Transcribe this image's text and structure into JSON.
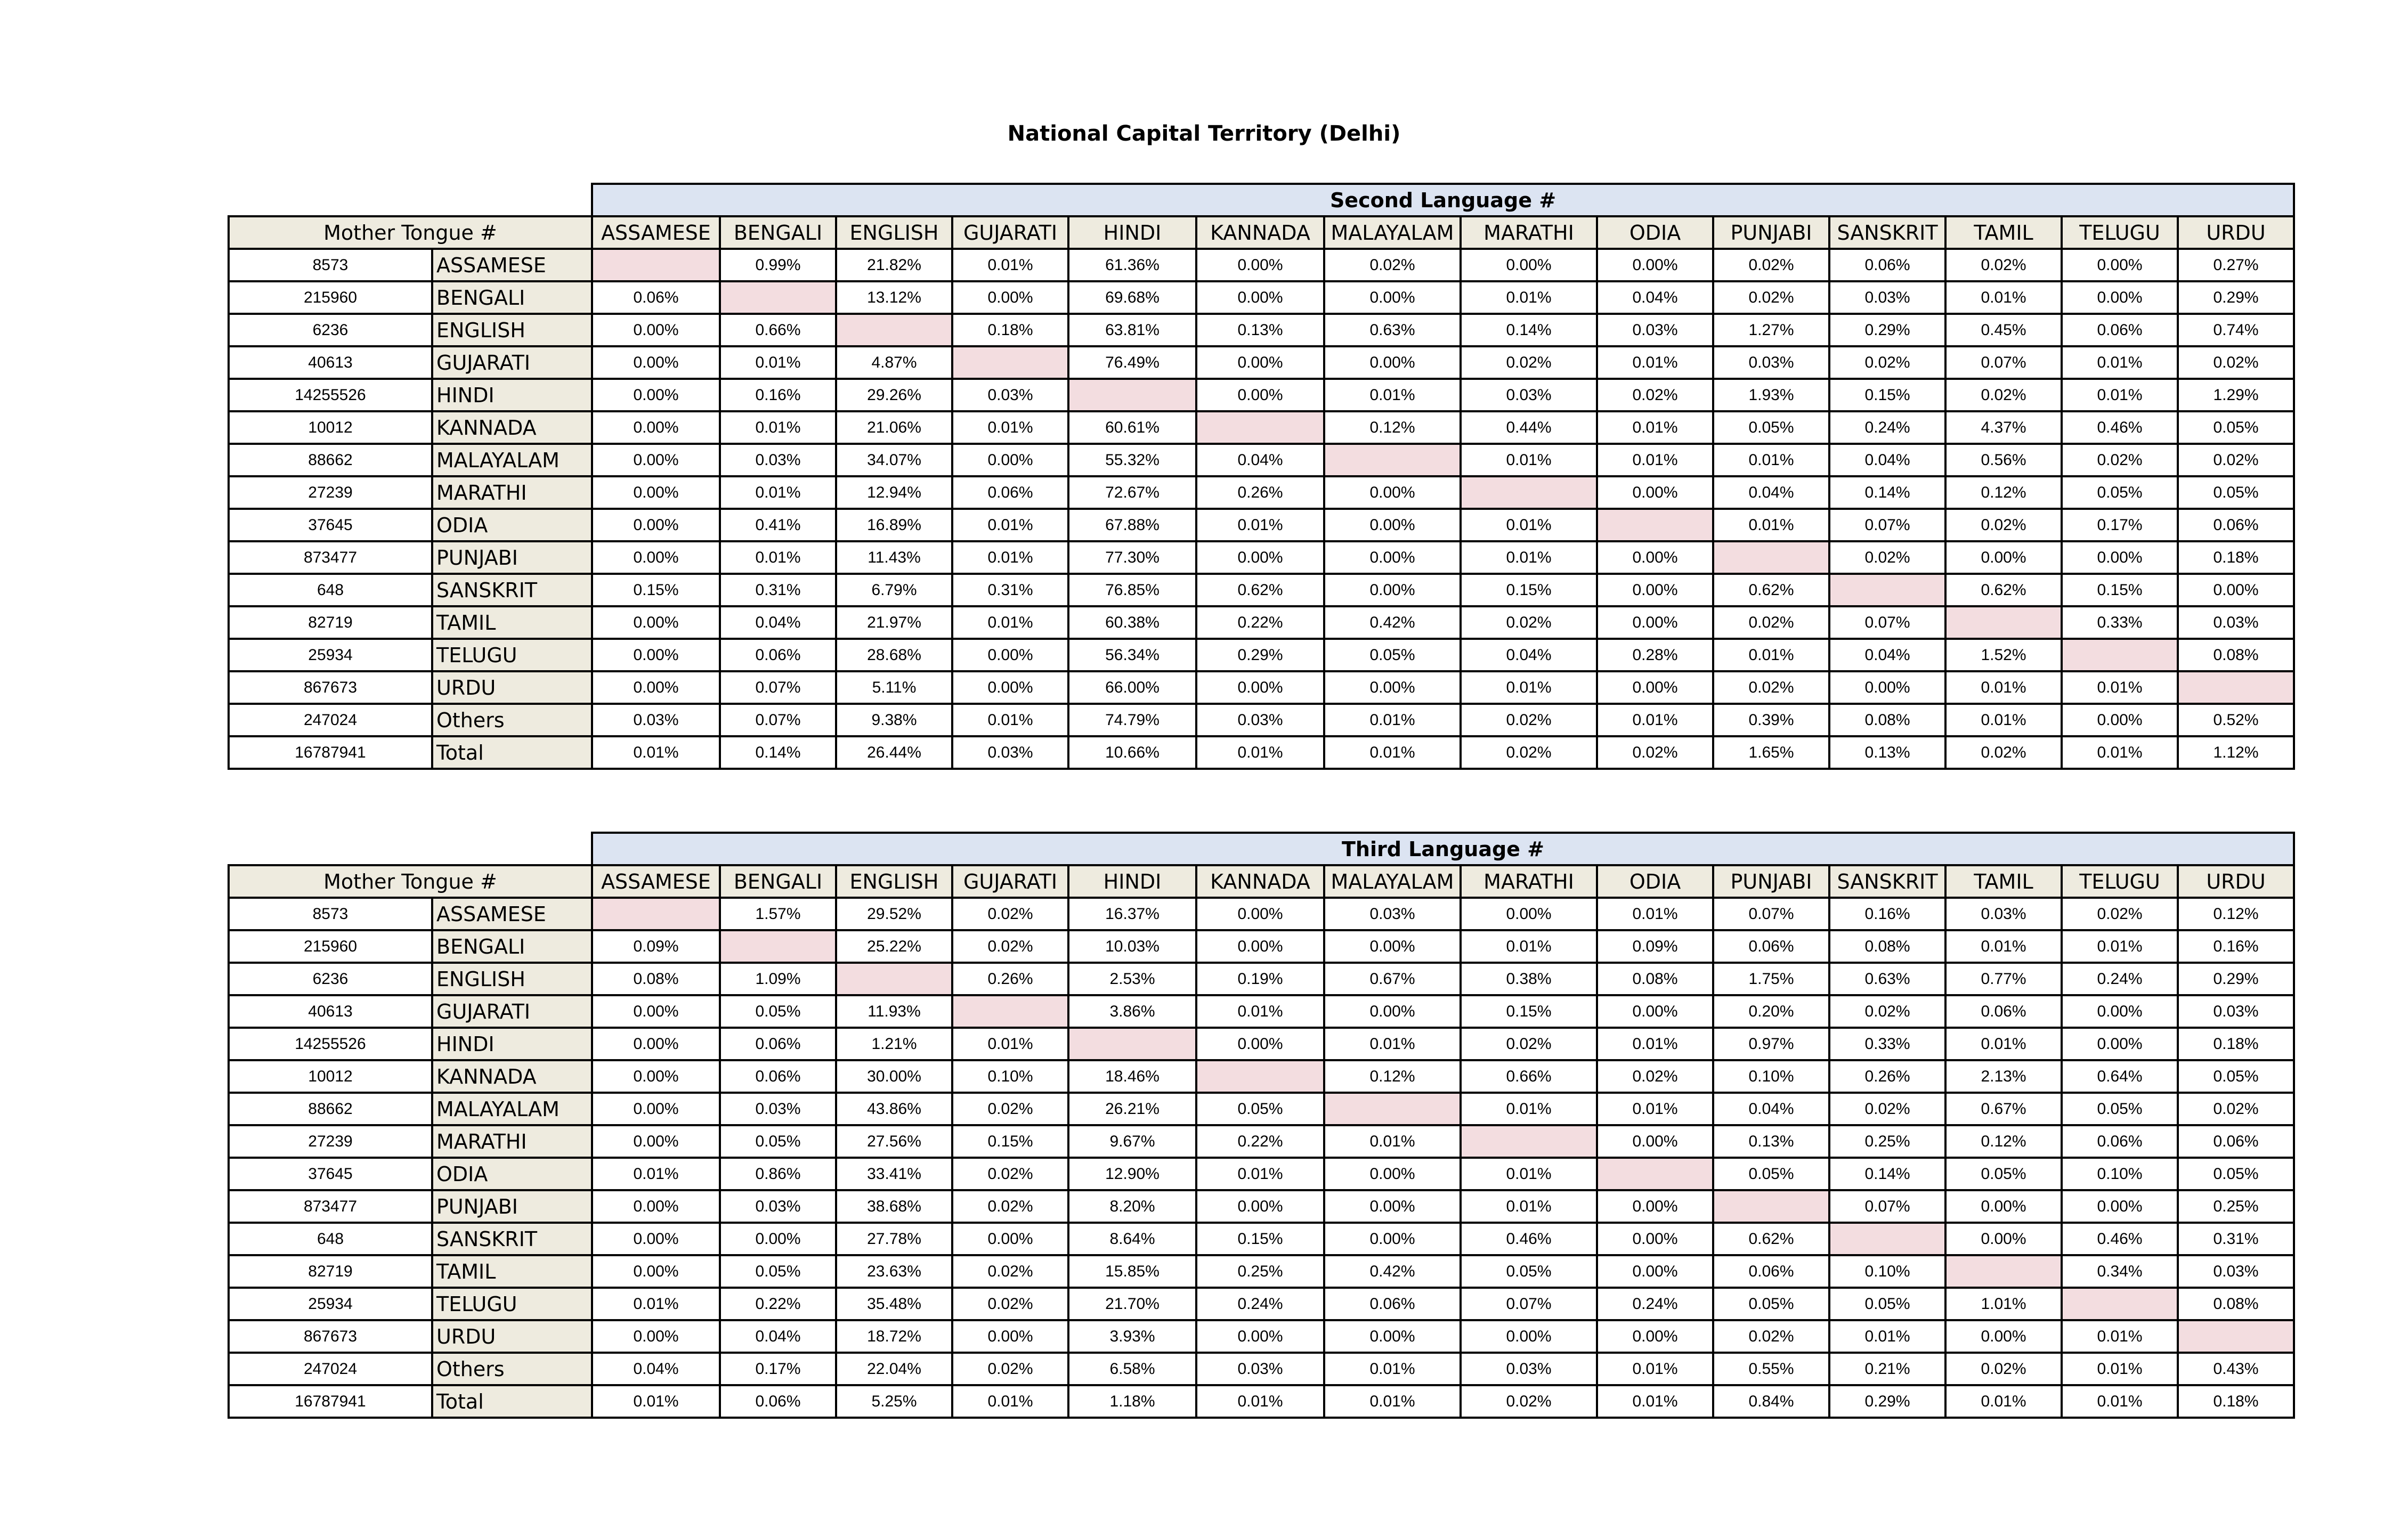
{
  "title": "National Capital Territory (Delhi)",
  "columns": [
    "ASSAMESE",
    "BENGALI",
    "ENGLISH",
    "GUJARATI",
    "HINDI",
    "KANNADA",
    "MALAYALAM",
    "MARATHI",
    "ODIA",
    "PUNJABI",
    "SANSKRIT",
    "TAMIL",
    "TELUGU",
    "URDU"
  ],
  "mother_tongue_header": "Mother Tongue #",
  "tables": [
    {
      "header": "Second Language #",
      "rows": [
        {
          "count": "8573",
          "lang": "ASSAMESE",
          "values": [
            "",
            "0.99%",
            "21.82%",
            "0.01%",
            "61.36%",
            "0.00%",
            "0.02%",
            "0.00%",
            "0.00%",
            "0.02%",
            "0.06%",
            "0.02%",
            "0.00%",
            "0.27%"
          ]
        },
        {
          "count": "215960",
          "lang": "BENGALI",
          "values": [
            "0.06%",
            "",
            "13.12%",
            "0.00%",
            "69.68%",
            "0.00%",
            "0.00%",
            "0.01%",
            "0.04%",
            "0.02%",
            "0.03%",
            "0.01%",
            "0.00%",
            "0.29%"
          ]
        },
        {
          "count": "6236",
          "lang": "ENGLISH",
          "values": [
            "0.00%",
            "0.66%",
            "",
            "0.18%",
            "63.81%",
            "0.13%",
            "0.63%",
            "0.14%",
            "0.03%",
            "1.27%",
            "0.29%",
            "0.45%",
            "0.06%",
            "0.74%"
          ]
        },
        {
          "count": "40613",
          "lang": "GUJARATI",
          "values": [
            "0.00%",
            "0.01%",
            "4.87%",
            "",
            "76.49%",
            "0.00%",
            "0.00%",
            "0.02%",
            "0.01%",
            "0.03%",
            "0.02%",
            "0.07%",
            "0.01%",
            "0.02%"
          ]
        },
        {
          "count": "14255526",
          "lang": "HINDI",
          "values": [
            "0.00%",
            "0.16%",
            "29.26%",
            "0.03%",
            "",
            "0.00%",
            "0.01%",
            "0.03%",
            "0.02%",
            "1.93%",
            "0.15%",
            "0.02%",
            "0.01%",
            "1.29%"
          ]
        },
        {
          "count": "10012",
          "lang": "KANNADA",
          "values": [
            "0.00%",
            "0.01%",
            "21.06%",
            "0.01%",
            "60.61%",
            "",
            "0.12%",
            "0.44%",
            "0.01%",
            "0.05%",
            "0.24%",
            "4.37%",
            "0.46%",
            "0.05%"
          ]
        },
        {
          "count": "88662",
          "lang": "MALAYALAM",
          "values": [
            "0.00%",
            "0.03%",
            "34.07%",
            "0.00%",
            "55.32%",
            "0.04%",
            "",
            "0.01%",
            "0.01%",
            "0.01%",
            "0.04%",
            "0.56%",
            "0.02%",
            "0.02%"
          ]
        },
        {
          "count": "27239",
          "lang": "MARATHI",
          "values": [
            "0.00%",
            "0.01%",
            "12.94%",
            "0.06%",
            "72.67%",
            "0.26%",
            "0.00%",
            "",
            "0.00%",
            "0.04%",
            "0.14%",
            "0.12%",
            "0.05%",
            "0.05%"
          ]
        },
        {
          "count": "37645",
          "lang": "ODIA",
          "values": [
            "0.00%",
            "0.41%",
            "16.89%",
            "0.01%",
            "67.88%",
            "0.01%",
            "0.00%",
            "0.01%",
            "",
            "0.01%",
            "0.07%",
            "0.02%",
            "0.17%",
            "0.06%"
          ]
        },
        {
          "count": "873477",
          "lang": "PUNJABI",
          "values": [
            "0.00%",
            "0.01%",
            "11.43%",
            "0.01%",
            "77.30%",
            "0.00%",
            "0.00%",
            "0.01%",
            "0.00%",
            "",
            "0.02%",
            "0.00%",
            "0.00%",
            "0.18%"
          ]
        },
        {
          "count": "648",
          "lang": "SANSKRIT",
          "values": [
            "0.15%",
            "0.31%",
            "6.79%",
            "0.31%",
            "76.85%",
            "0.62%",
            "0.00%",
            "0.15%",
            "0.00%",
            "0.62%",
            "",
            "0.62%",
            "0.15%",
            "0.00%"
          ]
        },
        {
          "count": "82719",
          "lang": "TAMIL",
          "values": [
            "0.00%",
            "0.04%",
            "21.97%",
            "0.01%",
            "60.38%",
            "0.22%",
            "0.42%",
            "0.02%",
            "0.00%",
            "0.02%",
            "0.07%",
            "",
            "0.33%",
            "0.03%"
          ]
        },
        {
          "count": "25934",
          "lang": "TELUGU",
          "values": [
            "0.00%",
            "0.06%",
            "28.68%",
            "0.00%",
            "56.34%",
            "0.29%",
            "0.05%",
            "0.04%",
            "0.28%",
            "0.01%",
            "0.04%",
            "1.52%",
            "",
            "0.08%"
          ]
        },
        {
          "count": "867673",
          "lang": "URDU",
          "values": [
            "0.00%",
            "0.07%",
            "5.11%",
            "0.00%",
            "66.00%",
            "0.00%",
            "0.00%",
            "0.01%",
            "0.00%",
            "0.02%",
            "0.00%",
            "0.01%",
            "0.01%",
            ""
          ]
        },
        {
          "count": "247024",
          "lang": "Others",
          "values": [
            "0.03%",
            "0.07%",
            "9.38%",
            "0.01%",
            "74.79%",
            "0.03%",
            "0.01%",
            "0.02%",
            "0.01%",
            "0.39%",
            "0.08%",
            "0.01%",
            "0.00%",
            "0.52%"
          ]
        },
        {
          "count": "16787941",
          "lang": "Total",
          "values": [
            "0.01%",
            "0.14%",
            "26.44%",
            "0.03%",
            "10.66%",
            "0.01%",
            "0.01%",
            "0.02%",
            "0.02%",
            "1.65%",
            "0.13%",
            "0.02%",
            "0.01%",
            "1.12%"
          ]
        }
      ]
    },
    {
      "header": "Third Language #",
      "rows": [
        {
          "count": "8573",
          "lang": "ASSAMESE",
          "values": [
            "",
            "1.57%",
            "29.52%",
            "0.02%",
            "16.37%",
            "0.00%",
            "0.03%",
            "0.00%",
            "0.01%",
            "0.07%",
            "0.16%",
            "0.03%",
            "0.02%",
            "0.12%"
          ]
        },
        {
          "count": "215960",
          "lang": "BENGALI",
          "values": [
            "0.09%",
            "",
            "25.22%",
            "0.02%",
            "10.03%",
            "0.00%",
            "0.00%",
            "0.01%",
            "0.09%",
            "0.06%",
            "0.08%",
            "0.01%",
            "0.01%",
            "0.16%"
          ]
        },
        {
          "count": "6236",
          "lang": "ENGLISH",
          "values": [
            "0.08%",
            "1.09%",
            "",
            "0.26%",
            "2.53%",
            "0.19%",
            "0.67%",
            "0.38%",
            "0.08%",
            "1.75%",
            "0.63%",
            "0.77%",
            "0.24%",
            "0.29%"
          ]
        },
        {
          "count": "40613",
          "lang": "GUJARATI",
          "values": [
            "0.00%",
            "0.05%",
            "11.93%",
            "",
            "3.86%",
            "0.01%",
            "0.00%",
            "0.15%",
            "0.00%",
            "0.20%",
            "0.02%",
            "0.06%",
            "0.00%",
            "0.03%"
          ]
        },
        {
          "count": "14255526",
          "lang": "HINDI",
          "values": [
            "0.00%",
            "0.06%",
            "1.21%",
            "0.01%",
            "",
            "0.00%",
            "0.01%",
            "0.02%",
            "0.01%",
            "0.97%",
            "0.33%",
            "0.01%",
            "0.00%",
            "0.18%"
          ]
        },
        {
          "count": "10012",
          "lang": "KANNADA",
          "values": [
            "0.00%",
            "0.06%",
            "30.00%",
            "0.10%",
            "18.46%",
            "",
            "0.12%",
            "0.66%",
            "0.02%",
            "0.10%",
            "0.26%",
            "2.13%",
            "0.64%",
            "0.05%"
          ]
        },
        {
          "count": "88662",
          "lang": "MALAYALAM",
          "values": [
            "0.00%",
            "0.03%",
            "43.86%",
            "0.02%",
            "26.21%",
            "0.05%",
            "",
            "0.01%",
            "0.01%",
            "0.04%",
            "0.02%",
            "0.67%",
            "0.05%",
            "0.02%"
          ]
        },
        {
          "count": "27239",
          "lang": "MARATHI",
          "values": [
            "0.00%",
            "0.05%",
            "27.56%",
            "0.15%",
            "9.67%",
            "0.22%",
            "0.01%",
            "",
            "0.00%",
            "0.13%",
            "0.25%",
            "0.12%",
            "0.06%",
            "0.06%"
          ]
        },
        {
          "count": "37645",
          "lang": "ODIA",
          "values": [
            "0.01%",
            "0.86%",
            "33.41%",
            "0.02%",
            "12.90%",
            "0.01%",
            "0.00%",
            "0.01%",
            "",
            "0.05%",
            "0.14%",
            "0.05%",
            "0.10%",
            "0.05%"
          ]
        },
        {
          "count": "873477",
          "lang": "PUNJABI",
          "values": [
            "0.00%",
            "0.03%",
            "38.68%",
            "0.02%",
            "8.20%",
            "0.00%",
            "0.00%",
            "0.01%",
            "0.00%",
            "",
            "0.07%",
            "0.00%",
            "0.00%",
            "0.25%"
          ]
        },
        {
          "count": "648",
          "lang": "SANSKRIT",
          "values": [
            "0.00%",
            "0.00%",
            "27.78%",
            "0.00%",
            "8.64%",
            "0.15%",
            "0.00%",
            "0.46%",
            "0.00%",
            "0.62%",
            "",
            "0.00%",
            "0.46%",
            "0.31%"
          ]
        },
        {
          "count": "82719",
          "lang": "TAMIL",
          "values": [
            "0.00%",
            "0.05%",
            "23.63%",
            "0.02%",
            "15.85%",
            "0.25%",
            "0.42%",
            "0.05%",
            "0.00%",
            "0.06%",
            "0.10%",
            "",
            "0.34%",
            "0.03%"
          ]
        },
        {
          "count": "25934",
          "lang": "TELUGU",
          "values": [
            "0.01%",
            "0.22%",
            "35.48%",
            "0.02%",
            "21.70%",
            "0.24%",
            "0.06%",
            "0.07%",
            "0.24%",
            "0.05%",
            "0.05%",
            "1.01%",
            "",
            "0.08%"
          ]
        },
        {
          "count": "867673",
          "lang": "URDU",
          "values": [
            "0.00%",
            "0.04%",
            "18.72%",
            "0.00%",
            "3.93%",
            "0.00%",
            "0.00%",
            "0.00%",
            "0.00%",
            "0.02%",
            "0.01%",
            "0.00%",
            "0.01%",
            ""
          ]
        },
        {
          "count": "247024",
          "lang": "Others",
          "values": [
            "0.04%",
            "0.17%",
            "22.04%",
            "0.02%",
            "6.58%",
            "0.03%",
            "0.01%",
            "0.03%",
            "0.01%",
            "0.55%",
            "0.21%",
            "0.02%",
            "0.01%",
            "0.43%"
          ]
        },
        {
          "count": "16787941",
          "lang": "Total",
          "values": [
            "0.01%",
            "0.06%",
            "5.25%",
            "0.01%",
            "1.18%",
            "0.01%",
            "0.01%",
            "0.02%",
            "0.01%",
            "0.84%",
            "0.29%",
            "0.01%",
            "0.01%",
            "0.18%"
          ]
        }
      ]
    }
  ]
}
